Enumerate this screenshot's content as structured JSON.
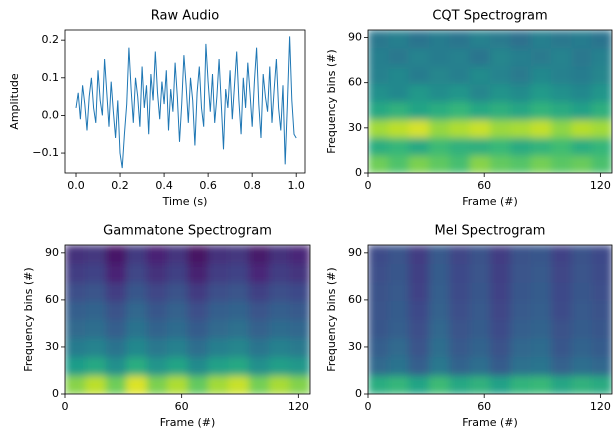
{
  "chart_data": [
    {
      "type": "line",
      "title": "Raw Audio",
      "xlabel": "Time (s)",
      "ylabel": "Amplitude",
      "color": "#1f77b4",
      "x": [
        0,
        0.01,
        0.02,
        0.03,
        0.04,
        0.05,
        0.06,
        0.07,
        0.08,
        0.09,
        0.1,
        0.11,
        0.12,
        0.13,
        0.14,
        0.15,
        0.16,
        0.17,
        0.18,
        0.19,
        0.2,
        0.21,
        0.22,
        0.23,
        0.24,
        0.25,
        0.26,
        0.27,
        0.28,
        0.29,
        0.3,
        0.31,
        0.32,
        0.33,
        0.34,
        0.35,
        0.36,
        0.37,
        0.38,
        0.39,
        0.4,
        0.41,
        0.42,
        0.43,
        0.44,
        0.45,
        0.46,
        0.47,
        0.48,
        0.49,
        0.5,
        0.51,
        0.52,
        0.53,
        0.54,
        0.55,
        0.56,
        0.57,
        0.58,
        0.59,
        0.6,
        0.61,
        0.62,
        0.63,
        0.64,
        0.65,
        0.66,
        0.67,
        0.68,
        0.69,
        0.7,
        0.71,
        0.72,
        0.73,
        0.74,
        0.75,
        0.76,
        0.77,
        0.78,
        0.79,
        0.8,
        0.81,
        0.82,
        0.83,
        0.84,
        0.85,
        0.86,
        0.87,
        0.88,
        0.89,
        0.9,
        0.91,
        0.92,
        0.93,
        0.94,
        0.95,
        0.96,
        0.97,
        0.98,
        0.99,
        1
      ],
      "values": [
        0.02,
        0.06,
        -0.01,
        0.08,
        0.03,
        -0.04,
        0.05,
        0.1,
        0.02,
        -0.02,
        0.12,
        0.04,
        0.0,
        0.15,
        0.06,
        -0.03,
        0.09,
        0.01,
        -0.06,
        0.04,
        -0.1,
        -0.14,
        -0.05,
        0.03,
        0.18,
        0.07,
        -0.02,
        0.1,
        0.05,
        -0.03,
        0.13,
        0.02,
        0.08,
        -0.05,
        0.11,
        0.04,
        0.17,
        0.06,
        -0.01,
        0.09,
        0.03,
        0.12,
        -0.04,
        0.07,
        0.01,
        0.14,
        0.05,
        -0.07,
        0.03,
        0.16,
        0.08,
        -0.02,
        0.1,
        0.04,
        -0.08,
        0.06,
        0.13,
        0.02,
        -0.03,
        0.19,
        0.09,
        0.01,
        0.11,
        -0.02,
        0.05,
        0.15,
        0.03,
        -0.09,
        0.07,
        0.02,
        0.12,
        -0.01,
        0.08,
        0.17,
        0.04,
        -0.05,
        0.1,
        0.02,
        0.14,
        0.06,
        -0.03,
        0.09,
        0.18,
        0.03,
        -0.06,
        0.11,
        0.05,
        0.01,
        0.13,
        -0.02,
        0.07,
        0.15,
        0.02,
        -0.04,
        0.08,
        -0.13,
        0.03,
        0.21,
        0.04,
        -0.05,
        -0.06
      ],
      "xlim": [
        -0.05,
        1.04
      ],
      "ylim": [
        -0.153,
        0.227
      ],
      "xticks": [
        {
          "value": 0,
          "label": "0.0"
        },
        0.2,
        0.4,
        0.6,
        0.8,
        {
          "value": 1,
          "label": "1.0"
        }
      ],
      "yticks": [
        {
          "value": -0.1,
          "label": "−0.1"
        },
        {
          "value": 0,
          "label": "0.0"
        },
        0.1,
        0.2
      ]
    },
    {
      "type": "heatmap",
      "title": "CQT Spectrogram",
      "xlabel": "Frame (#)",
      "ylabel": "Frequency bins (#)",
      "colormap": "viridis",
      "xlim": [
        0,
        126
      ],
      "ylim": [
        0,
        95
      ],
      "xticks": [
        0,
        60,
        120
      ],
      "yticks": [
        0,
        30,
        60,
        90
      ],
      "z": [
        [
          0.78,
          0.72,
          0.8,
          0.75,
          0.7,
          0.82,
          0.76,
          0.73,
          0.79,
          0.74,
          0.77,
          0.71
        ],
        [
          0.62,
          0.66,
          0.6,
          0.68,
          0.64,
          0.63,
          0.67,
          0.61,
          0.65,
          0.69,
          0.62,
          0.66
        ],
        [
          0.86,
          0.9,
          0.94,
          0.84,
          0.88,
          0.92,
          0.85,
          0.87,
          0.91,
          0.83,
          0.89,
          0.86
        ],
        [
          0.6,
          0.64,
          0.58,
          0.62,
          0.66,
          0.6,
          0.63,
          0.59,
          0.65,
          0.61,
          0.57,
          0.63
        ],
        [
          0.5,
          0.47,
          0.53,
          0.49,
          0.52,
          0.46,
          0.51,
          0.48,
          0.54,
          0.5,
          0.47,
          0.52
        ],
        [
          0.44,
          0.47,
          0.42,
          0.46,
          0.43,
          0.48,
          0.45,
          0.41,
          0.47,
          0.44,
          0.42,
          0.46
        ],
        [
          0.43,
          0.4,
          0.45,
          0.42,
          0.44,
          0.39,
          0.46,
          0.43,
          0.41,
          0.45,
          0.4,
          0.44
        ],
        [
          0.4,
          0.43,
          0.38,
          0.42,
          0.39,
          0.44,
          0.41,
          0.37,
          0.43,
          0.4,
          0.42,
          0.38
        ]
      ]
    },
    {
      "type": "heatmap",
      "title": "Gammatone Spectrogram",
      "xlabel": "Frame (#)",
      "ylabel": "Frequency bins (#)",
      "colormap": "viridis",
      "xlim": [
        0,
        126
      ],
      "ylim": [
        0,
        95
      ],
      "xticks": [
        0,
        60,
        120
      ],
      "yticks": [
        0,
        30,
        60,
        90
      ],
      "z": [
        [
          0.82,
          0.9,
          0.78,
          0.95,
          0.8,
          0.88,
          0.76,
          0.86,
          0.92,
          0.79,
          0.87,
          0.81
        ],
        [
          0.55,
          0.6,
          0.5,
          0.62,
          0.52,
          0.58,
          0.48,
          0.57,
          0.6,
          0.5,
          0.56,
          0.53
        ],
        [
          0.42,
          0.45,
          0.38,
          0.47,
          0.4,
          0.44,
          0.36,
          0.43,
          0.46,
          0.39,
          0.44,
          0.41
        ],
        [
          0.34,
          0.36,
          0.3,
          0.38,
          0.32,
          0.35,
          0.29,
          0.34,
          0.37,
          0.31,
          0.35,
          0.33
        ],
        [
          0.3,
          0.32,
          0.25,
          0.33,
          0.27,
          0.31,
          0.24,
          0.3,
          0.32,
          0.26,
          0.3,
          0.28
        ],
        [
          0.24,
          0.26,
          0.18,
          0.27,
          0.21,
          0.25,
          0.17,
          0.24,
          0.26,
          0.19,
          0.24,
          0.22
        ],
        [
          0.18,
          0.2,
          0.1,
          0.21,
          0.14,
          0.19,
          0.09,
          0.18,
          0.2,
          0.11,
          0.18,
          0.15
        ],
        [
          0.14,
          0.16,
          0.06,
          0.17,
          0.1,
          0.15,
          0.05,
          0.14,
          0.16,
          0.07,
          0.14,
          0.11
        ]
      ]
    },
    {
      "type": "heatmap",
      "title": "Mel Spectrogram",
      "xlabel": "Frame (#)",
      "ylabel": "Frequency bins (#)",
      "colormap": "viridis",
      "xlim": [
        0,
        126
      ],
      "ylim": [
        0,
        95
      ],
      "xticks": [
        0,
        60,
        120
      ],
      "yticks": [
        0,
        30,
        60,
        90
      ],
      "z": [
        [
          0.62,
          0.66,
          0.58,
          0.68,
          0.6,
          0.64,
          0.57,
          0.65,
          0.67,
          0.59,
          0.64,
          0.61
        ],
        [
          0.34,
          0.38,
          0.3,
          0.4,
          0.32,
          0.36,
          0.29,
          0.37,
          0.39,
          0.31,
          0.36,
          0.33
        ],
        [
          0.3,
          0.34,
          0.26,
          0.36,
          0.28,
          0.32,
          0.25,
          0.33,
          0.35,
          0.27,
          0.32,
          0.29
        ],
        [
          0.27,
          0.3,
          0.24,
          0.33,
          0.26,
          0.29,
          0.23,
          0.3,
          0.32,
          0.25,
          0.29,
          0.27
        ],
        [
          0.26,
          0.29,
          0.22,
          0.31,
          0.24,
          0.28,
          0.21,
          0.28,
          0.3,
          0.23,
          0.28,
          0.25
        ],
        [
          0.25,
          0.28,
          0.2,
          0.3,
          0.23,
          0.27,
          0.2,
          0.27,
          0.29,
          0.22,
          0.27,
          0.24
        ],
        [
          0.24,
          0.27,
          0.19,
          0.29,
          0.22,
          0.26,
          0.19,
          0.26,
          0.28,
          0.21,
          0.26,
          0.23
        ],
        [
          0.23,
          0.26,
          0.18,
          0.28,
          0.21,
          0.25,
          0.18,
          0.25,
          0.27,
          0.2,
          0.25,
          0.22
        ]
      ]
    }
  ]
}
